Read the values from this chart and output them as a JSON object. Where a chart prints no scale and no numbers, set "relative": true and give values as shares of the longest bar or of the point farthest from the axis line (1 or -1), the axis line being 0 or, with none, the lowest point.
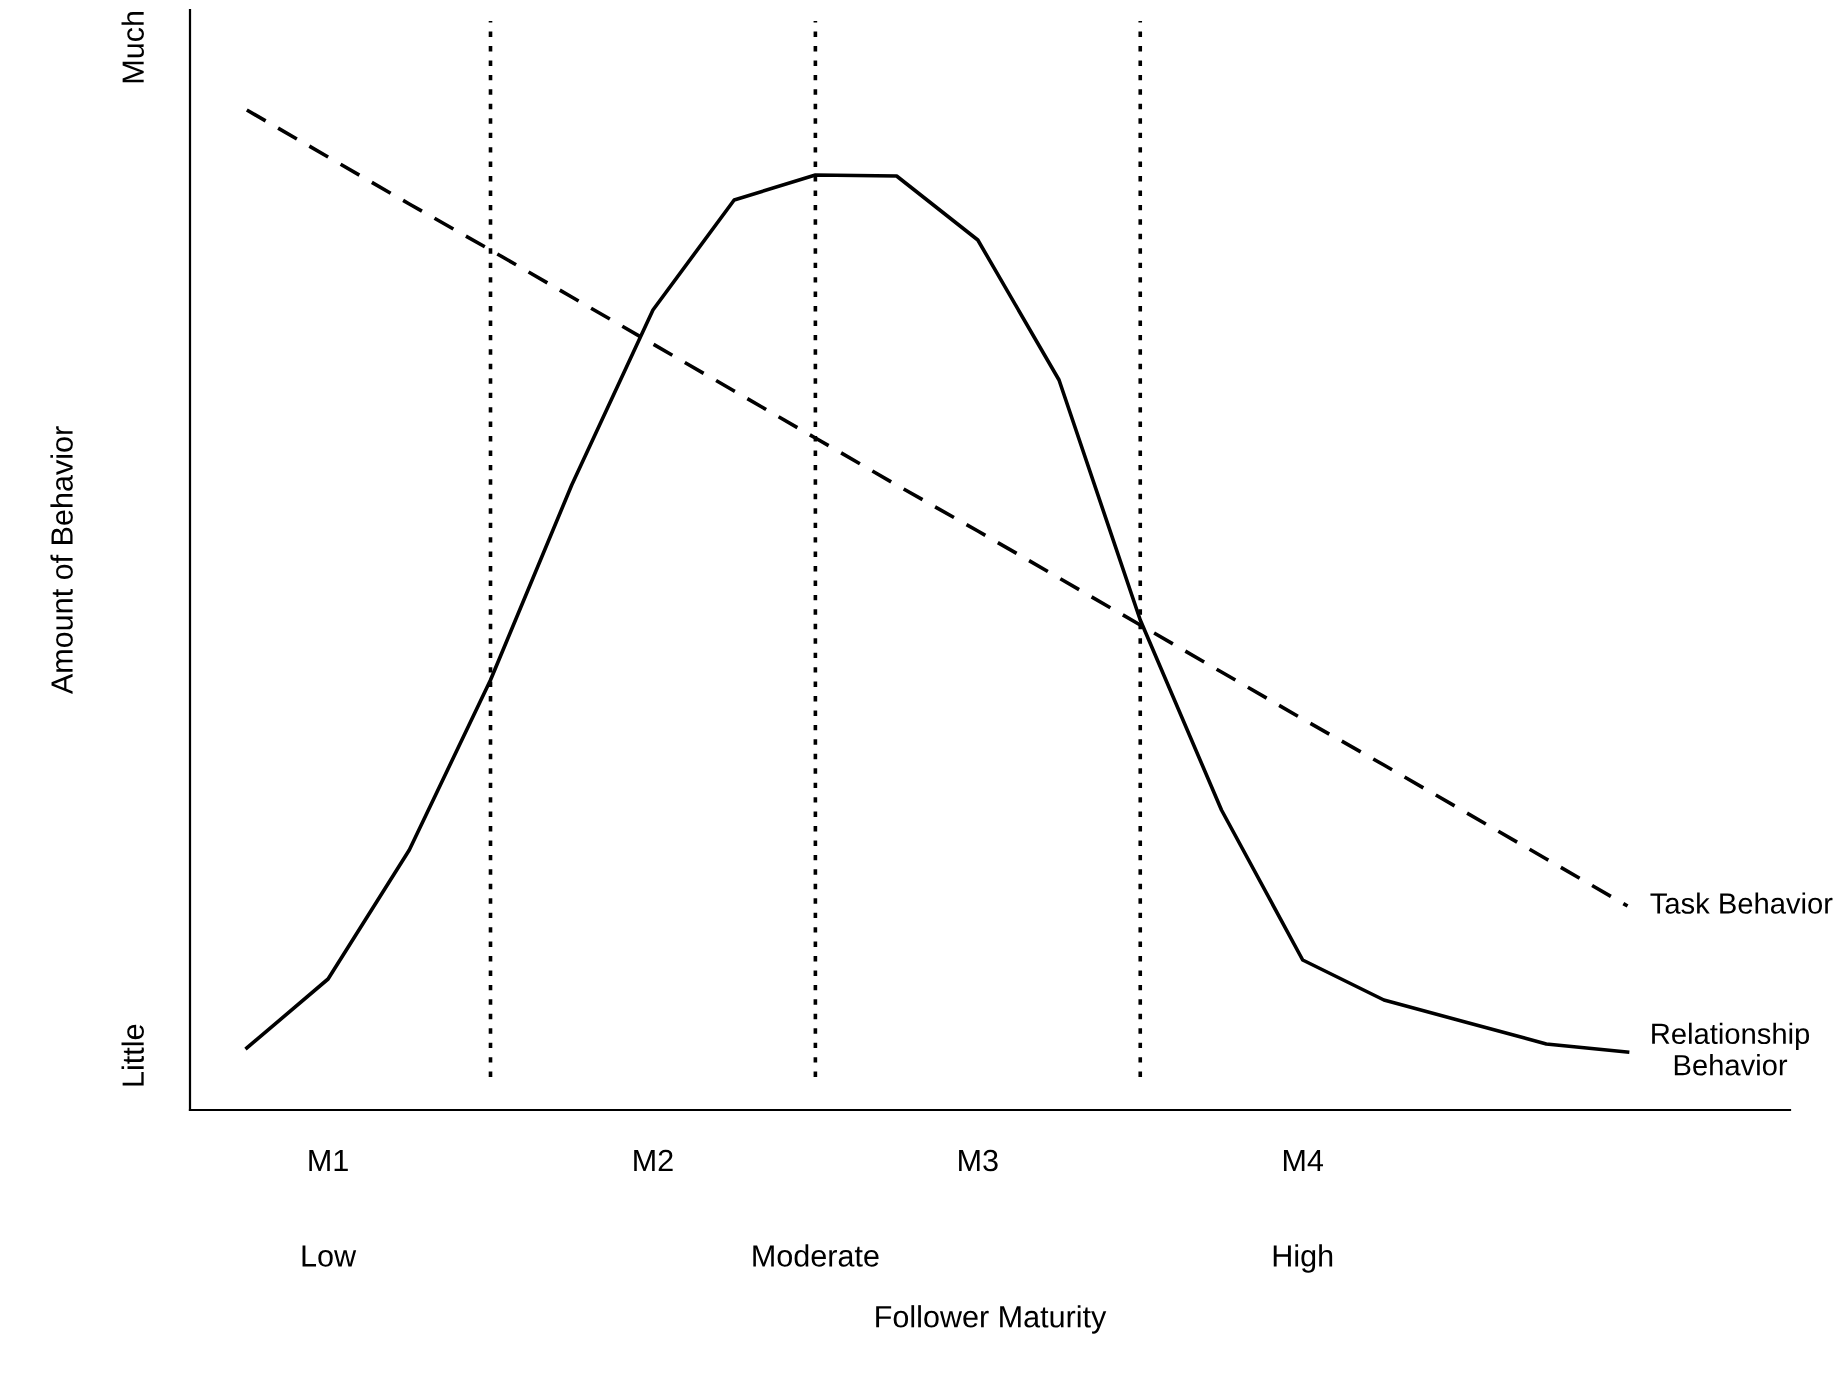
{
  "chart_data": {
    "type": "line",
    "relative": true,
    "xlabel": "Follower Maturity",
    "ylabel": "Amount of Behavior",
    "categories": [
      null,
      "M1",
      null,
      null,
      null,
      "M2",
      null,
      null,
      null,
      "M3",
      null,
      null,
      null,
      "M4",
      null,
      null,
      null,
      null
    ],
    "series": [
      {
        "name": "Task Behavior",
        "color": "#000000",
        "line_style": "dashed",
        "values": [
          1.0,
          0.953,
          0.906,
          0.86,
          0.813,
          0.766,
          0.719,
          0.672,
          0.625,
          0.579,
          0.532,
          0.485,
          0.438,
          0.391,
          0.345,
          0.298,
          0.251,
          0.204
        ]
      },
      {
        "name": "Relationship\nBehavior",
        "color": "#000000",
        "line_style": "solid",
        "values": [
          0.062,
          0.131,
          0.26,
          0.43,
          0.625,
          0.8,
          0.91,
          0.935,
          0.934,
          0.87,
          0.73,
          0.49,
          0.3,
          0.15,
          0.11,
          0.088,
          0.066,
          0.058
        ]
      }
    ],
    "annotations": [
      "Much",
      "Little",
      "Low",
      "Moderate",
      "High"
    ],
    "grid": "x",
    "legend": false,
    "marker": "none"
  }
}
